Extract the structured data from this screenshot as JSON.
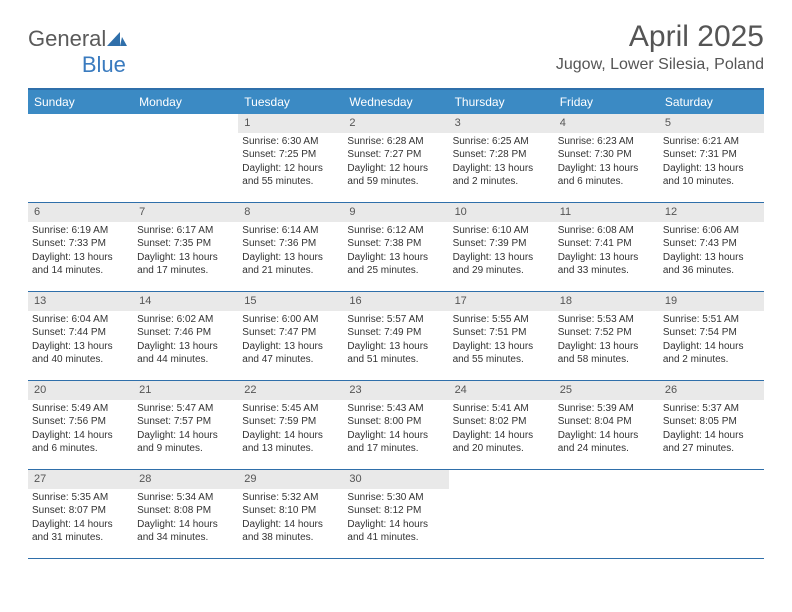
{
  "logo": {
    "general": "General",
    "blue": "Blue"
  },
  "title": "April 2025",
  "location": "Jugow, Lower Silesia, Poland",
  "colors": {
    "header_bg": "#3b8ac4",
    "header_text": "#ffffff",
    "rule": "#2f6faa",
    "daynum_bg": "#e9e9e9",
    "text": "#333333",
    "title_text": "#555555"
  },
  "day_names": [
    "Sunday",
    "Monday",
    "Tuesday",
    "Wednesday",
    "Thursday",
    "Friday",
    "Saturday"
  ],
  "weeks": [
    [
      {
        "n": "",
        "sunrise": "",
        "sunset": "",
        "daylight": ""
      },
      {
        "n": "",
        "sunrise": "",
        "sunset": "",
        "daylight": ""
      },
      {
        "n": "1",
        "sunrise": "Sunrise: 6:30 AM",
        "sunset": "Sunset: 7:25 PM",
        "daylight": "Daylight: 12 hours and 55 minutes."
      },
      {
        "n": "2",
        "sunrise": "Sunrise: 6:28 AM",
        "sunset": "Sunset: 7:27 PM",
        "daylight": "Daylight: 12 hours and 59 minutes."
      },
      {
        "n": "3",
        "sunrise": "Sunrise: 6:25 AM",
        "sunset": "Sunset: 7:28 PM",
        "daylight": "Daylight: 13 hours and 2 minutes."
      },
      {
        "n": "4",
        "sunrise": "Sunrise: 6:23 AM",
        "sunset": "Sunset: 7:30 PM",
        "daylight": "Daylight: 13 hours and 6 minutes."
      },
      {
        "n": "5",
        "sunrise": "Sunrise: 6:21 AM",
        "sunset": "Sunset: 7:31 PM",
        "daylight": "Daylight: 13 hours and 10 minutes."
      }
    ],
    [
      {
        "n": "6",
        "sunrise": "Sunrise: 6:19 AM",
        "sunset": "Sunset: 7:33 PM",
        "daylight": "Daylight: 13 hours and 14 minutes."
      },
      {
        "n": "7",
        "sunrise": "Sunrise: 6:17 AM",
        "sunset": "Sunset: 7:35 PM",
        "daylight": "Daylight: 13 hours and 17 minutes."
      },
      {
        "n": "8",
        "sunrise": "Sunrise: 6:14 AM",
        "sunset": "Sunset: 7:36 PM",
        "daylight": "Daylight: 13 hours and 21 minutes."
      },
      {
        "n": "9",
        "sunrise": "Sunrise: 6:12 AM",
        "sunset": "Sunset: 7:38 PM",
        "daylight": "Daylight: 13 hours and 25 minutes."
      },
      {
        "n": "10",
        "sunrise": "Sunrise: 6:10 AM",
        "sunset": "Sunset: 7:39 PM",
        "daylight": "Daylight: 13 hours and 29 minutes."
      },
      {
        "n": "11",
        "sunrise": "Sunrise: 6:08 AM",
        "sunset": "Sunset: 7:41 PM",
        "daylight": "Daylight: 13 hours and 33 minutes."
      },
      {
        "n": "12",
        "sunrise": "Sunrise: 6:06 AM",
        "sunset": "Sunset: 7:43 PM",
        "daylight": "Daylight: 13 hours and 36 minutes."
      }
    ],
    [
      {
        "n": "13",
        "sunrise": "Sunrise: 6:04 AM",
        "sunset": "Sunset: 7:44 PM",
        "daylight": "Daylight: 13 hours and 40 minutes."
      },
      {
        "n": "14",
        "sunrise": "Sunrise: 6:02 AM",
        "sunset": "Sunset: 7:46 PM",
        "daylight": "Daylight: 13 hours and 44 minutes."
      },
      {
        "n": "15",
        "sunrise": "Sunrise: 6:00 AM",
        "sunset": "Sunset: 7:47 PM",
        "daylight": "Daylight: 13 hours and 47 minutes."
      },
      {
        "n": "16",
        "sunrise": "Sunrise: 5:57 AM",
        "sunset": "Sunset: 7:49 PM",
        "daylight": "Daylight: 13 hours and 51 minutes."
      },
      {
        "n": "17",
        "sunrise": "Sunrise: 5:55 AM",
        "sunset": "Sunset: 7:51 PM",
        "daylight": "Daylight: 13 hours and 55 minutes."
      },
      {
        "n": "18",
        "sunrise": "Sunrise: 5:53 AM",
        "sunset": "Sunset: 7:52 PM",
        "daylight": "Daylight: 13 hours and 58 minutes."
      },
      {
        "n": "19",
        "sunrise": "Sunrise: 5:51 AM",
        "sunset": "Sunset: 7:54 PM",
        "daylight": "Daylight: 14 hours and 2 minutes."
      }
    ],
    [
      {
        "n": "20",
        "sunrise": "Sunrise: 5:49 AM",
        "sunset": "Sunset: 7:56 PM",
        "daylight": "Daylight: 14 hours and 6 minutes."
      },
      {
        "n": "21",
        "sunrise": "Sunrise: 5:47 AM",
        "sunset": "Sunset: 7:57 PM",
        "daylight": "Daylight: 14 hours and 9 minutes."
      },
      {
        "n": "22",
        "sunrise": "Sunrise: 5:45 AM",
        "sunset": "Sunset: 7:59 PM",
        "daylight": "Daylight: 14 hours and 13 minutes."
      },
      {
        "n": "23",
        "sunrise": "Sunrise: 5:43 AM",
        "sunset": "Sunset: 8:00 PM",
        "daylight": "Daylight: 14 hours and 17 minutes."
      },
      {
        "n": "24",
        "sunrise": "Sunrise: 5:41 AM",
        "sunset": "Sunset: 8:02 PM",
        "daylight": "Daylight: 14 hours and 20 minutes."
      },
      {
        "n": "25",
        "sunrise": "Sunrise: 5:39 AM",
        "sunset": "Sunset: 8:04 PM",
        "daylight": "Daylight: 14 hours and 24 minutes."
      },
      {
        "n": "26",
        "sunrise": "Sunrise: 5:37 AM",
        "sunset": "Sunset: 8:05 PM",
        "daylight": "Daylight: 14 hours and 27 minutes."
      }
    ],
    [
      {
        "n": "27",
        "sunrise": "Sunrise: 5:35 AM",
        "sunset": "Sunset: 8:07 PM",
        "daylight": "Daylight: 14 hours and 31 minutes."
      },
      {
        "n": "28",
        "sunrise": "Sunrise: 5:34 AM",
        "sunset": "Sunset: 8:08 PM",
        "daylight": "Daylight: 14 hours and 34 minutes."
      },
      {
        "n": "29",
        "sunrise": "Sunrise: 5:32 AM",
        "sunset": "Sunset: 8:10 PM",
        "daylight": "Daylight: 14 hours and 38 minutes."
      },
      {
        "n": "30",
        "sunrise": "Sunrise: 5:30 AM",
        "sunset": "Sunset: 8:12 PM",
        "daylight": "Daylight: 14 hours and 41 minutes."
      },
      {
        "n": "",
        "sunrise": "",
        "sunset": "",
        "daylight": ""
      },
      {
        "n": "",
        "sunrise": "",
        "sunset": "",
        "daylight": ""
      },
      {
        "n": "",
        "sunrise": "",
        "sunset": "",
        "daylight": ""
      }
    ]
  ]
}
